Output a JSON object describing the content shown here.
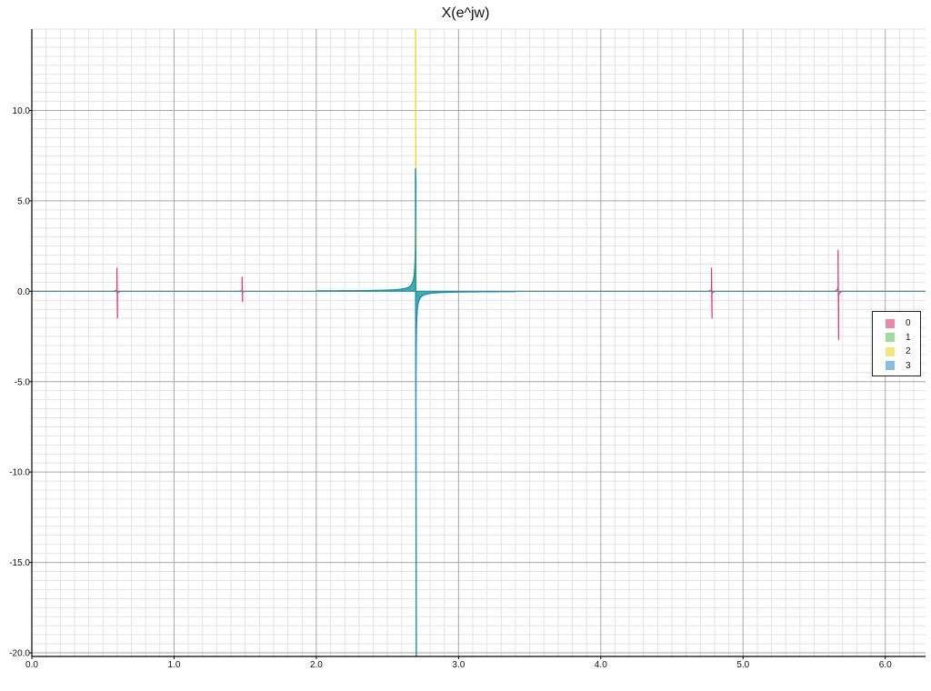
{
  "chart_data": {
    "type": "line",
    "title": "X(e^jw)",
    "xlabel": "",
    "ylabel": "",
    "xlim": [
      0,
      6.283
    ],
    "ylim": [
      -20.2,
      14.5
    ],
    "x_ticks": [
      "0.0",
      "1.0",
      "2.0",
      "3.0",
      "4.0",
      "5.0",
      "6.0"
    ],
    "y_ticks": [
      "10.0",
      "5.0",
      "0.0",
      "-5.0",
      "-10.0",
      "-15.0",
      "-20.0"
    ],
    "grid": true,
    "legend_position": "right",
    "series": [
      {
        "name": "0",
        "color": "#e8336f",
        "swatch": "#ef86a6",
        "pole_spikes": [
          {
            "x": 0.6,
            "peak": 1.3,
            "trough": -1.5
          },
          {
            "x": 1.48,
            "peak": 0.8,
            "trough": -0.6
          },
          {
            "x": 4.78,
            "peak": 1.3,
            "trough": -1.5
          },
          {
            "x": 5.67,
            "peak": 2.3,
            "trough": -2.7
          }
        ]
      },
      {
        "name": "1",
        "color": "#6fca6a",
        "swatch": "#9fdc9a",
        "pole_spikes": [
          {
            "x": 2.7,
            "peak": 0.4,
            "trough": -0.4
          }
        ]
      },
      {
        "name": "2",
        "color": "#f2dc2e",
        "swatch": "#f6e77c",
        "pole_spikes": [
          {
            "x": 2.7,
            "peak": 14.5,
            "trough": -0.3
          }
        ]
      },
      {
        "name": "3",
        "color": "#1f8fb5",
        "swatch": "#86bde0",
        "pole_spikes": [
          {
            "x": 2.7,
            "peak": 6.8,
            "trough": -20.2
          }
        ]
      }
    ]
  }
}
